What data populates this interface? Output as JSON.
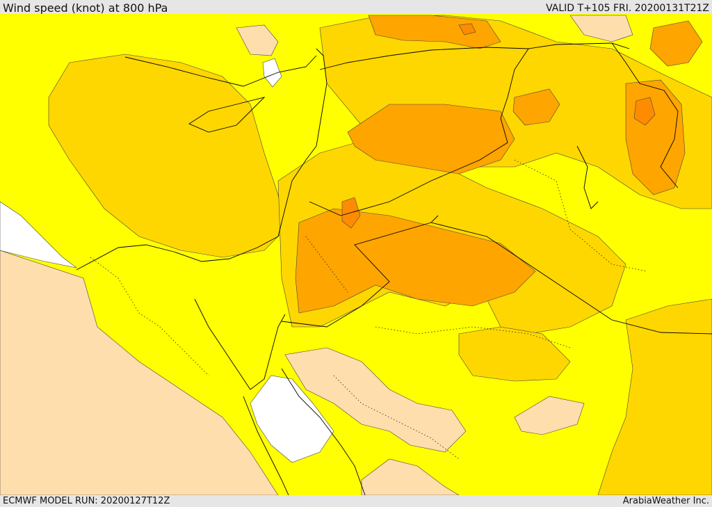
{
  "header": {
    "title": "Wind speed (knot) at 800 hPa",
    "valid": "VALID T+105 FRI. 20200131T21Z"
  },
  "footer": {
    "model_run": "ECMWF MODEL RUN: 20200127T12Z",
    "credit": "ArabiaWeather Inc."
  },
  "map": {
    "colors": {
      "calm": "#ffffff",
      "light": "#ffdead",
      "moderate": "#ffff00",
      "fresh": "#ffd700",
      "strong": "#ffa500",
      "very_strong": "#ff8c00",
      "border": "#000000",
      "contour": "#333333"
    }
  }
}
